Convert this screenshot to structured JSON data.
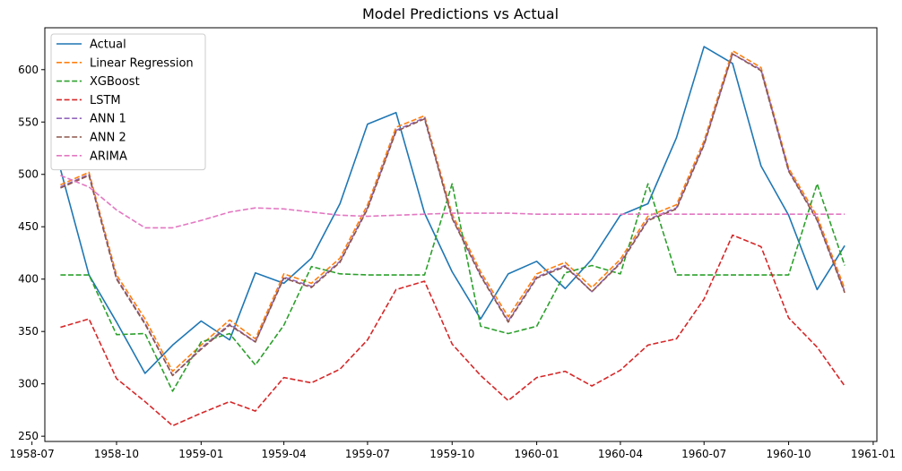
{
  "chart_data": {
    "type": "line",
    "title": "Model Predictions vs Actual",
    "xlabel": "",
    "ylabel": "",
    "x": [
      "1958-08",
      "1958-09",
      "1958-10",
      "1958-11",
      "1958-12",
      "1959-01",
      "1959-02",
      "1959-03",
      "1959-04",
      "1959-05",
      "1959-06",
      "1959-07",
      "1959-08",
      "1959-09",
      "1959-10",
      "1959-11",
      "1959-12",
      "1960-01",
      "1960-02",
      "1960-03",
      "1960-04",
      "1960-05",
      "1960-06",
      "1960-07",
      "1960-08",
      "1960-09",
      "1960-10",
      "1960-11",
      "1960-12"
    ],
    "xlim": [
      "1958-07-15",
      "1961-01-05"
    ],
    "xticks": [
      "1958-07",
      "1958-10",
      "1959-01",
      "1959-04",
      "1959-07",
      "1959-10",
      "1960-01",
      "1960-04",
      "1960-07",
      "1960-10",
      "1961-01"
    ],
    "ylim": [
      245,
      640
    ],
    "yticks": [
      250,
      300,
      350,
      400,
      450,
      500,
      550,
      600
    ],
    "grid": false,
    "legend_position": "top-left",
    "series": [
      {
        "name": "Actual",
        "color": "#1f77b4",
        "dash": "solid",
        "values": [
          505,
          404,
          359,
          310,
          337,
          360,
          342,
          406,
          396,
          420,
          472,
          548,
          559,
          463,
          407,
          362,
          405,
          417,
          391,
          419,
          461,
          472,
          535,
          622,
          606,
          508,
          461,
          390,
          432
        ]
      },
      {
        "name": "Linear Regression",
        "color": "#ff7f0e",
        "dash": "dashed",
        "values": [
          490,
          502,
          404,
          362,
          312,
          337,
          361,
          343,
          405,
          396,
          420,
          471,
          545,
          556,
          462,
          407,
          364,
          405,
          416,
          392,
          419,
          460,
          471,
          532,
          618,
          602,
          506,
          460,
          391
        ]
      },
      {
        "name": "XGBoost",
        "color": "#2ca02c",
        "dash": "dashed",
        "values": [
          404,
          404,
          347,
          348,
          293,
          340,
          348,
          318,
          356,
          412,
          405,
          404,
          404,
          404,
          491,
          355,
          348,
          355,
          406,
          413,
          405,
          491,
          404,
          404,
          404,
          404,
          404,
          491,
          413
        ]
      },
      {
        "name": "LSTM",
        "color": "#d62728",
        "dash": "dashed",
        "values": [
          354,
          362,
          305,
          283,
          260,
          272,
          283,
          274,
          306,
          301,
          314,
          342,
          390,
          398,
          338,
          308,
          284,
          306,
          312,
          298,
          313,
          337,
          343,
          381,
          442,
          431,
          363,
          335,
          298
        ]
      },
      {
        "name": "ANN 1",
        "color": "#9467bd",
        "dash": "dashed",
        "values": [
          488,
          500,
          401,
          358,
          308,
          334,
          357,
          340,
          402,
          393,
          417,
          468,
          542,
          554,
          459,
          404,
          360,
          402,
          413,
          388,
          416,
          457,
          468,
          529,
          615,
          600,
          504,
          457,
          388
        ]
      },
      {
        "name": "ANN 2",
        "color": "#8c564b",
        "dash": "dashed",
        "values": [
          487,
          499,
          400,
          357,
          308,
          333,
          356,
          340,
          401,
          392,
          416,
          467,
          541,
          553,
          458,
          403,
          359,
          401,
          412,
          388,
          415,
          456,
          467,
          528,
          615,
          599,
          503,
          456,
          387
        ]
      },
      {
        "name": "ARIMA",
        "color": "#e377c2",
        "dash": "dashed",
        "values": [
          499,
          488,
          466,
          449,
          449,
          456,
          464,
          468,
          467,
          464,
          461,
          460,
          461,
          462,
          463,
          463,
          463,
          462,
          462,
          462,
          462,
          462,
          462,
          462,
          462,
          462,
          462,
          462,
          462
        ]
      }
    ]
  }
}
